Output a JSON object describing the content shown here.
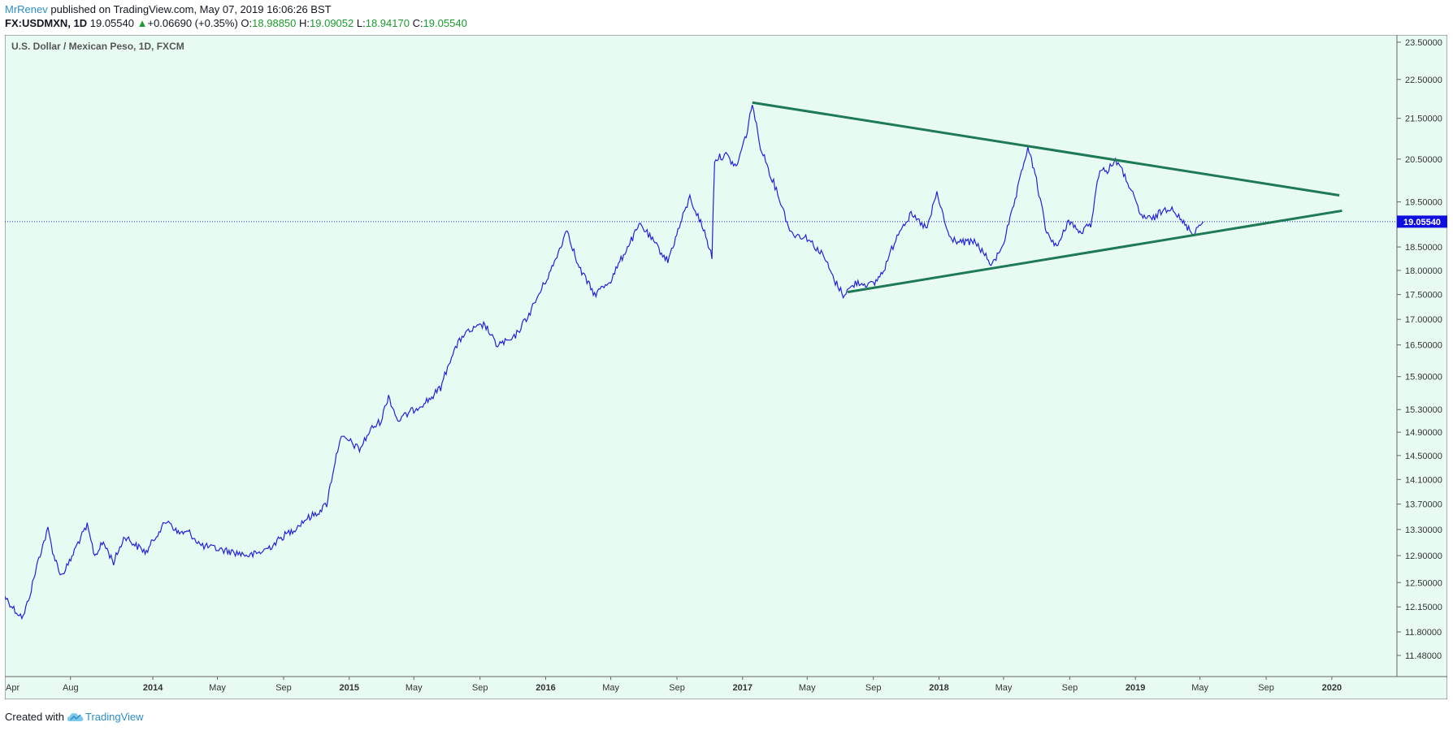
{
  "header": {
    "author": "MrRenev",
    "published_text": " published on TradingView.com, May 07, 2019 16:06:26 BST",
    "symbol": "FX:USDMXN, 1D",
    "last": "19.05540",
    "change": "+0.06690 (+0.35%)",
    "o_label": "O:",
    "o_value": "18.98850",
    "h_label": "H:",
    "h_value": "19.09052",
    "l_label": "L:",
    "l_value": "18.94170",
    "c_label": "C:",
    "c_value": "19.05540"
  },
  "footer": {
    "created_with": "Created with",
    "brand": "TradingView",
    "brand_icon": "tradingview-cloud-icon"
  },
  "colors": {
    "background": "#e8fbf3",
    "price_line": "#2222dd",
    "trendline": "#1e7a55",
    "last_price_badge": "#0f0fe0"
  },
  "chart_data": {
    "type": "line",
    "title": "U.S. Dollar / Mexican Peso, 1D, FXCM",
    "xlabel": "",
    "ylabel": "",
    "scale": "log",
    "ylim": [
      11.2,
      23.7
    ],
    "xlim": [
      "2013-04-01",
      "2020-05-01"
    ],
    "last_price": 19.0554,
    "last_price_label": "19.05540",
    "y_ticks": [
      {
        "value": 23.5,
        "label": "23.50000"
      },
      {
        "value": 22.5,
        "label": "22.50000"
      },
      {
        "value": 21.5,
        "label": "21.50000"
      },
      {
        "value": 20.5,
        "label": "20.50000"
      },
      {
        "value": 19.5,
        "label": "19.50000"
      },
      {
        "value": 18.5,
        "label": "18.50000"
      },
      {
        "value": 18.0,
        "label": "18.00000"
      },
      {
        "value": 17.5,
        "label": "17.50000"
      },
      {
        "value": 17.0,
        "label": "17.00000"
      },
      {
        "value": 16.5,
        "label": "16.50000"
      },
      {
        "value": 15.9,
        "label": "15.90000"
      },
      {
        "value": 15.3,
        "label": "15.30000"
      },
      {
        "value": 14.9,
        "label": "14.90000"
      },
      {
        "value": 14.5,
        "label": "14.50000"
      },
      {
        "value": 14.1,
        "label": "14.10000"
      },
      {
        "value": 13.7,
        "label": "13.70000"
      },
      {
        "value": 13.3,
        "label": "13.30000"
      },
      {
        "value": 12.9,
        "label": "12.90000"
      },
      {
        "value": 12.5,
        "label": "12.50000"
      },
      {
        "value": 12.15,
        "label": "12.15000"
      },
      {
        "value": 11.8,
        "label": "11.80000"
      },
      {
        "value": 11.48,
        "label": "11.48000"
      }
    ],
    "x_ticks": [
      {
        "date": "2013-04-01",
        "label": "Apr",
        "bold": false
      },
      {
        "date": "2013-08-01",
        "label": "Aug",
        "bold": false
      },
      {
        "date": "2014-01-01",
        "label": "2014",
        "bold": true
      },
      {
        "date": "2014-05-01",
        "label": "May",
        "bold": false
      },
      {
        "date": "2014-09-01",
        "label": "Sep",
        "bold": false
      },
      {
        "date": "2015-01-01",
        "label": "2015",
        "bold": true
      },
      {
        "date": "2015-05-01",
        "label": "May",
        "bold": false
      },
      {
        "date": "2015-09-01",
        "label": "Sep",
        "bold": false
      },
      {
        "date": "2016-01-01",
        "label": "2016",
        "bold": true
      },
      {
        "date": "2016-05-01",
        "label": "May",
        "bold": false
      },
      {
        "date": "2016-09-01",
        "label": "Sep",
        "bold": false
      },
      {
        "date": "2017-01-01",
        "label": "2017",
        "bold": true
      },
      {
        "date": "2017-05-01",
        "label": "May",
        "bold": false
      },
      {
        "date": "2017-09-01",
        "label": "Sep",
        "bold": false
      },
      {
        "date": "2018-01-01",
        "label": "2018",
        "bold": true
      },
      {
        "date": "2018-05-01",
        "label": "May",
        "bold": false
      },
      {
        "date": "2018-09-01",
        "label": "Sep",
        "bold": false
      },
      {
        "date": "2019-01-01",
        "label": "2019",
        "bold": true
      },
      {
        "date": "2019-05-01",
        "label": "May",
        "bold": false
      },
      {
        "date": "2019-09-01",
        "label": "Sep",
        "bold": false
      },
      {
        "date": "2020-01-01",
        "label": "2020",
        "bold": true
      }
    ],
    "series": [
      {
        "name": "",
        "points": [
          [
            "2013-04-01",
            12.3
          ],
          [
            "2013-04-20",
            12.1
          ],
          [
            "2013-05-05",
            12.0
          ],
          [
            "2013-05-20",
            12.4
          ],
          [
            "2013-06-01",
            12.8
          ],
          [
            "2013-06-10",
            13.05
          ],
          [
            "2013-06-20",
            13.3
          ],
          [
            "2013-07-01",
            12.9
          ],
          [
            "2013-07-15",
            12.6
          ],
          [
            "2013-07-30",
            12.8
          ],
          [
            "2013-08-15",
            13.1
          ],
          [
            "2013-09-01",
            13.35
          ],
          [
            "2013-09-15",
            12.9
          ],
          [
            "2013-10-01",
            13.1
          ],
          [
            "2013-10-20",
            12.8
          ],
          [
            "2013-11-10",
            13.2
          ],
          [
            "2013-12-01",
            13.05
          ],
          [
            "2013-12-20",
            12.95
          ],
          [
            "2014-01-10",
            13.25
          ],
          [
            "2014-01-30",
            13.45
          ],
          [
            "2014-02-15",
            13.25
          ],
          [
            "2014-03-10",
            13.25
          ],
          [
            "2014-04-01",
            13.05
          ],
          [
            "2014-05-01",
            13.0
          ],
          [
            "2014-06-01",
            12.95
          ],
          [
            "2014-07-01",
            12.9
          ],
          [
            "2014-07-20",
            12.95
          ],
          [
            "2014-08-10",
            13.05
          ],
          [
            "2014-09-01",
            13.2
          ],
          [
            "2014-09-20",
            13.3
          ],
          [
            "2014-10-10",
            13.45
          ],
          [
            "2014-11-01",
            13.55
          ],
          [
            "2014-11-20",
            13.7
          ],
          [
            "2014-12-01",
            14.2
          ],
          [
            "2014-12-15",
            14.8
          ],
          [
            "2015-01-01",
            14.75
          ],
          [
            "2015-01-20",
            14.6
          ],
          [
            "2015-02-10",
            14.95
          ],
          [
            "2015-03-01",
            15.1
          ],
          [
            "2015-03-15",
            15.55
          ],
          [
            "2015-04-01",
            15.1
          ],
          [
            "2015-05-01",
            15.3
          ],
          [
            "2015-06-01",
            15.5
          ],
          [
            "2015-06-20",
            15.7
          ],
          [
            "2015-07-10",
            16.3
          ],
          [
            "2015-08-01",
            16.7
          ],
          [
            "2015-08-20",
            16.8
          ],
          [
            "2015-09-10",
            16.9
          ],
          [
            "2015-10-01",
            16.5
          ],
          [
            "2015-11-01",
            16.6
          ],
          [
            "2015-12-01",
            17.1
          ],
          [
            "2016-01-15",
            18.1
          ],
          [
            "2016-02-10",
            18.9
          ],
          [
            "2016-03-01",
            18.1
          ],
          [
            "2016-04-01",
            17.5
          ],
          [
            "2016-05-01",
            17.8
          ],
          [
            "2016-06-01",
            18.5
          ],
          [
            "2016-06-25",
            19.0
          ],
          [
            "2016-07-20",
            18.6
          ],
          [
            "2016-08-15",
            18.2
          ],
          [
            "2016-09-10",
            19.1
          ],
          [
            "2016-09-25",
            19.6
          ],
          [
            "2016-10-20",
            18.9
          ],
          [
            "2016-11-05",
            18.3
          ],
          [
            "2016-11-10",
            20.5
          ],
          [
            "2016-12-01",
            20.6
          ],
          [
            "2016-12-20",
            20.3
          ],
          [
            "2017-01-10",
            21.2
          ],
          [
            "2017-01-19",
            21.9
          ],
          [
            "2017-02-01",
            20.9
          ],
          [
            "2017-02-20",
            20.2
          ],
          [
            "2017-03-10",
            19.6
          ],
          [
            "2017-04-01",
            18.8
          ],
          [
            "2017-05-01",
            18.7
          ],
          [
            "2017-06-01",
            18.3
          ],
          [
            "2017-06-20",
            17.8
          ],
          [
            "2017-07-07",
            17.5
          ],
          [
            "2017-08-01",
            17.75
          ],
          [
            "2017-09-01",
            17.7
          ],
          [
            "2017-09-20",
            18.0
          ],
          [
            "2017-10-20",
            18.9
          ],
          [
            "2017-11-10",
            19.2
          ],
          [
            "2017-12-10",
            18.9
          ],
          [
            "2017-12-28",
            19.7
          ],
          [
            "2018-01-20",
            18.7
          ],
          [
            "2018-02-10",
            18.6
          ],
          [
            "2018-03-10",
            18.6
          ],
          [
            "2018-04-10",
            18.1
          ],
          [
            "2018-05-01",
            18.6
          ],
          [
            "2018-05-20",
            19.4
          ],
          [
            "2018-06-15",
            20.8
          ],
          [
            "2018-07-01",
            20.0
          ],
          [
            "2018-07-20",
            18.8
          ],
          [
            "2018-08-10",
            18.5
          ],
          [
            "2018-08-30",
            19.1
          ],
          [
            "2018-09-20",
            18.8
          ],
          [
            "2018-10-10",
            19.0
          ],
          [
            "2018-10-27",
            20.3
          ],
          [
            "2018-11-10",
            20.2
          ],
          [
            "2018-11-25",
            20.5
          ],
          [
            "2018-12-20",
            19.9
          ],
          [
            "2019-01-10",
            19.2
          ],
          [
            "2019-02-01",
            19.1
          ],
          [
            "2019-02-20",
            19.3
          ],
          [
            "2019-03-10",
            19.4
          ],
          [
            "2019-03-25",
            19.1
          ],
          [
            "2019-04-10",
            18.9
          ],
          [
            "2019-04-17",
            18.8
          ],
          [
            "2019-05-07",
            19.0554
          ]
        ]
      }
    ],
    "trendlines": [
      {
        "name": "",
        "from": [
          "2017-01-19",
          21.9
        ],
        "to": [
          "2020-01-15",
          19.65
        ]
      },
      {
        "name": "",
        "from": [
          "2017-07-15",
          17.55
        ],
        "to": [
          "2020-01-20",
          19.3
        ]
      }
    ]
  }
}
